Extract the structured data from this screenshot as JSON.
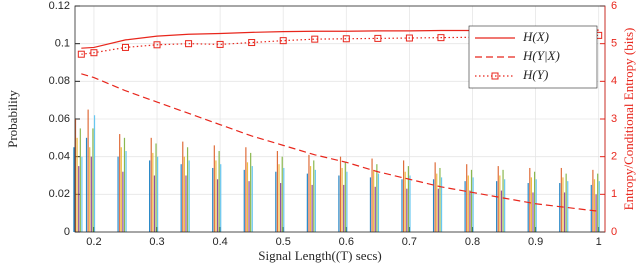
{
  "chart_data": {
    "type": "line",
    "xlabel": "Signal Length((T) secs)",
    "ylabel": "Probability",
    "y2label": "Entropy/Conditional Entropy (bits)",
    "xlim": [
      0.17,
      1.01
    ],
    "xticks": [
      0.2,
      0.3,
      0.4,
      0.5,
      0.6,
      0.7,
      0.8,
      0.9,
      1
    ],
    "ylim": [
      0,
      0.12
    ],
    "yticks": [
      0,
      0.02,
      0.04,
      0.06,
      0.08,
      0.1,
      0.12
    ],
    "y2lim": [
      0,
      6
    ],
    "y2ticks": [
      0,
      1,
      2,
      3,
      4,
      5,
      6
    ],
    "grid": true,
    "legend": "upper right",
    "x": [
      0.18,
      0.2,
      0.25,
      0.3,
      0.35,
      0.4,
      0.45,
      0.5,
      0.55,
      0.6,
      0.65,
      0.7,
      0.75,
      0.8,
      0.85,
      0.9,
      0.95,
      1.0
    ],
    "series": [
      {
        "name": "H(X)",
        "color": "#e8261c",
        "dash": "solid",
        "axis": "y2",
        "values": [
          4.88,
          4.9,
          5.1,
          5.2,
          5.25,
          5.27,
          5.3,
          5.32,
          5.33,
          5.33,
          5.34,
          5.34,
          5.35,
          5.35,
          5.35,
          5.36,
          5.36,
          5.36
        ]
      },
      {
        "name": "H(Y|X)",
        "color": "#e8261c",
        "dash": "dashed",
        "axis": "y2",
        "values": [
          4.2,
          4.1,
          3.75,
          3.45,
          3.15,
          2.85,
          2.55,
          2.3,
          2.05,
          1.85,
          1.6,
          1.4,
          1.2,
          1.05,
          0.9,
          0.75,
          0.65,
          0.55
        ]
      },
      {
        "name": "H(Y)",
        "color": "#e8261c",
        "dash": "dotted",
        "marker": "square",
        "axis": "y2",
        "values": [
          4.72,
          4.76,
          4.9,
          4.97,
          5.0,
          4.98,
          5.03,
          5.08,
          5.12,
          5.13,
          5.14,
          5.15,
          5.16,
          5.17,
          5.18,
          5.19,
          5.2,
          5.22
        ]
      }
    ],
    "bars": {
      "x": [
        0.18,
        0.2,
        0.25,
        0.3,
        0.35,
        0.4,
        0.45,
        0.5,
        0.55,
        0.6,
        0.65,
        0.7,
        0.75,
        0.8,
        0.85,
        0.9,
        0.95,
        1.0
      ],
      "colors": [
        "#0072bd",
        "#d95319",
        "#edb120",
        "#7e2f8e",
        "#77ac30",
        "#4dbeee"
      ],
      "values": [
        [
          0.045,
          0.06,
          0.05,
          0.035,
          0.055,
          0.04
        ],
        [
          0.05,
          0.065,
          0.045,
          0.04,
          0.055,
          0.062
        ],
        [
          0.04,
          0.052,
          0.045,
          0.032,
          0.05,
          0.043
        ],
        [
          0.038,
          0.05,
          0.042,
          0.03,
          0.047,
          0.04
        ],
        [
          0.036,
          0.048,
          0.04,
          0.03,
          0.045,
          0.038
        ],
        [
          0.034,
          0.046,
          0.038,
          0.028,
          0.043,
          0.036
        ],
        [
          0.033,
          0.045,
          0.037,
          0.027,
          0.042,
          0.035
        ],
        [
          0.032,
          0.043,
          0.036,
          0.026,
          0.04,
          0.034
        ],
        [
          0.031,
          0.041,
          0.035,
          0.025,
          0.038,
          0.033
        ],
        [
          0.03,
          0.04,
          0.034,
          0.025,
          0.037,
          0.032
        ],
        [
          0.029,
          0.039,
          0.033,
          0.024,
          0.036,
          0.031
        ],
        [
          0.028,
          0.038,
          0.032,
          0.023,
          0.035,
          0.03
        ],
        [
          0.028,
          0.037,
          0.031,
          0.023,
          0.034,
          0.029
        ],
        [
          0.027,
          0.036,
          0.03,
          0.022,
          0.033,
          0.029
        ],
        [
          0.027,
          0.035,
          0.03,
          0.022,
          0.033,
          0.028
        ],
        [
          0.026,
          0.034,
          0.029,
          0.021,
          0.032,
          0.028
        ],
        [
          0.026,
          0.034,
          0.029,
          0.021,
          0.031,
          0.027
        ],
        [
          0.025,
          0.033,
          0.028,
          0.02,
          0.031,
          0.027
        ]
      ]
    }
  }
}
